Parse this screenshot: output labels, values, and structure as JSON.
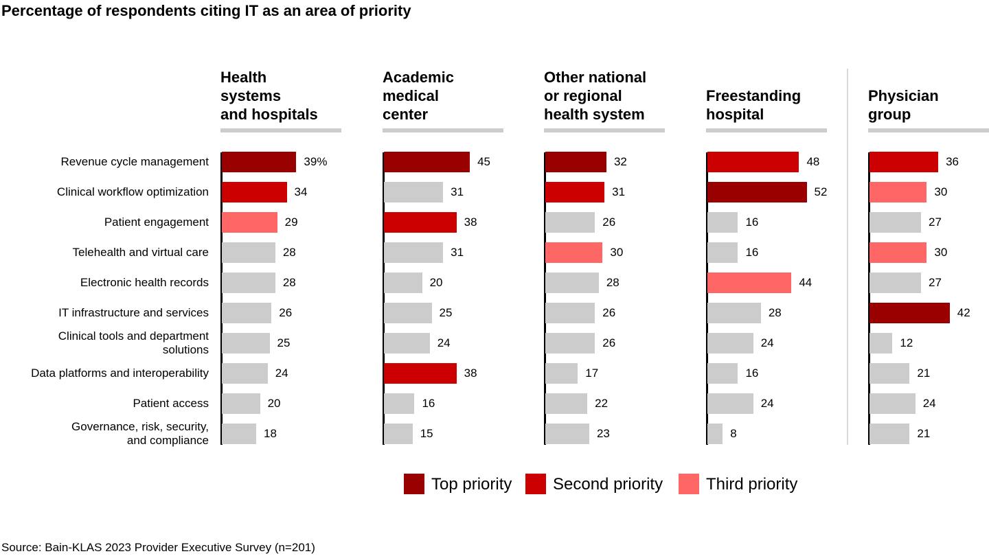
{
  "chart_data": {
    "type": "bar",
    "orientation": "horizontal",
    "title": "Percentage of respondents citing IT as an area of priority",
    "categories": [
      "Revenue cycle management",
      "Clinical workflow optimization",
      "Patient engagement",
      "Telehealth and virtual care",
      "Electronic health records",
      "IT infrastructure and services",
      "Clinical tools and department solutions",
      "Data platforms and interoperability",
      "Patient access",
      "Governance, risk, security, and compliance"
    ],
    "category_display": [
      "Revenue cycle management",
      "Clinical workflow optimization",
      "Patient engagement",
      "Telehealth and virtual care",
      "Electronic health records",
      "IT infrastructure and services",
      "Clinical tools and department\nsolutions",
      "Data platforms and interoperability",
      "Patient access",
      "Governance, risk, security,\nand compliance"
    ],
    "unit": "%",
    "series": [
      {
        "name": "Health systems and hospitals",
        "header": "Health\nsystems\nand hospitals",
        "values": [
          39,
          34,
          29,
          28,
          28,
          26,
          25,
          24,
          20,
          18
        ],
        "priority": [
          "top",
          "second",
          "third",
          null,
          null,
          null,
          null,
          null,
          null,
          null
        ]
      },
      {
        "name": "Academic medical center",
        "header": "Academic\nmedical\ncenter",
        "values": [
          45,
          31,
          38,
          31,
          20,
          25,
          24,
          38,
          16,
          15
        ],
        "priority": [
          "top",
          null,
          "second",
          null,
          null,
          null,
          null,
          "second",
          null,
          null
        ]
      },
      {
        "name": "Other national or regional health system",
        "header": "Other national\nor regional\nhealth system",
        "values": [
          32,
          31,
          26,
          30,
          28,
          26,
          26,
          17,
          22,
          23
        ],
        "priority": [
          "top",
          "second",
          null,
          "third",
          null,
          null,
          null,
          null,
          null,
          null
        ]
      },
      {
        "name": "Freestanding hospital",
        "header": "Freestanding\nhospital",
        "values": [
          48,
          52,
          16,
          16,
          44,
          28,
          24,
          16,
          24,
          8
        ],
        "priority": [
          "second",
          "top",
          null,
          null,
          "third",
          null,
          null,
          null,
          null,
          null
        ]
      },
      {
        "name": "Physician group",
        "header": "Physician\ngroup",
        "values": [
          36,
          30,
          27,
          30,
          27,
          42,
          12,
          21,
          24,
          21
        ],
        "priority": [
          "second",
          "third",
          null,
          "third",
          null,
          "top",
          null,
          null,
          null,
          null
        ]
      }
    ],
    "legend": [
      {
        "key": "top",
        "label": "Top priority",
        "color": "#990000"
      },
      {
        "key": "second",
        "label": "Second priority",
        "color": "#CC0000"
      },
      {
        "key": "third",
        "label": "Third priority",
        "color": "#FF6666"
      }
    ],
    "default_color": "#CCCCCC",
    "legend_position": "bottom",
    "grid": false,
    "xlim": [
      0,
      55
    ]
  },
  "source": "Source: Bain-KLAS 2023 Provider Executive Survey (n=201)"
}
